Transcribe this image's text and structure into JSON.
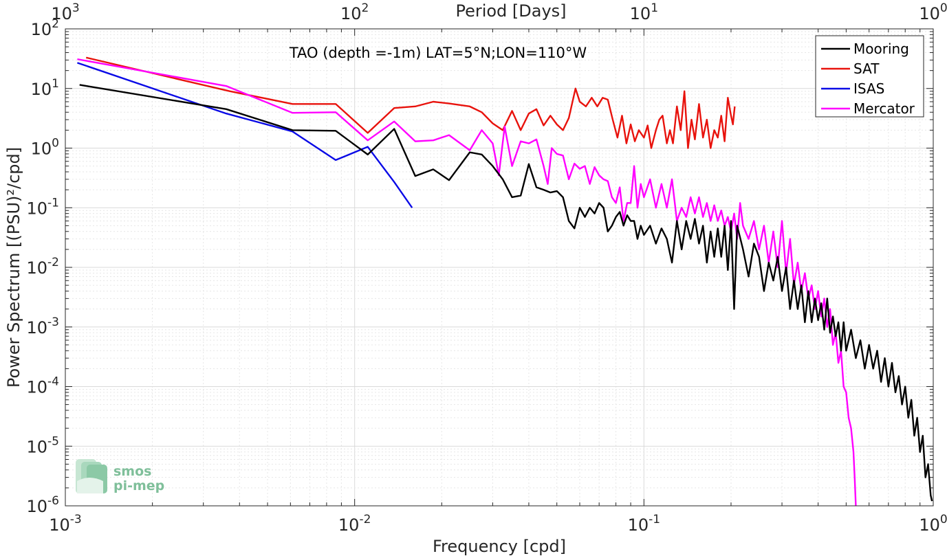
{
  "chart_data": {
    "type": "line",
    "title": "TAO (depth =-1m) LAT=5°N;LON=110°W",
    "xlabel": "Frequency [cpd]",
    "ylabel": "Power Spectrum [(PSU)²/cpd]",
    "top_xlabel": "Period [Days]",
    "xscale": "log",
    "yscale": "log",
    "xlim": [
      0.001,
      1
    ],
    "ylim": [
      1e-06,
      100
    ],
    "grid": true,
    "legend_position": "top-right",
    "x_ticks": [
      {
        "value": 0.001,
        "base": "10",
        "exp": "-3"
      },
      {
        "value": 0.01,
        "base": "10",
        "exp": "-2"
      },
      {
        "value": 0.1,
        "base": "10",
        "exp": "-1"
      },
      {
        "value": 1,
        "base": "10",
        "exp": "0"
      }
    ],
    "top_ticks": [
      {
        "value": 0.001,
        "base": "10",
        "exp": "3"
      },
      {
        "value": 0.01,
        "base": "10",
        "exp": "2"
      },
      {
        "value": 0.1,
        "base": "10",
        "exp": "1"
      },
      {
        "value": 1,
        "base": "10",
        "exp": "0"
      }
    ],
    "y_ticks": [
      {
        "value": 100,
        "base": "10",
        "exp": "2"
      },
      {
        "value": 10,
        "base": "10",
        "exp": "1"
      },
      {
        "value": 1,
        "base": "10",
        "exp": "0"
      },
      {
        "value": 0.1,
        "base": "10",
        "exp": "-1"
      },
      {
        "value": 0.01,
        "base": "10",
        "exp": "-2"
      },
      {
        "value": 0.001,
        "base": "10",
        "exp": "-3"
      },
      {
        "value": 0.0001,
        "base": "10",
        "exp": "-4"
      },
      {
        "value": 1e-05,
        "base": "10",
        "exp": "-5"
      },
      {
        "value": 1e-06,
        "base": "10",
        "exp": "-6"
      }
    ],
    "series": [
      {
        "name": "Mooring",
        "color": "#000000",
        "points": [
          [
            0.00112,
            11.5
          ],
          [
            0.0036,
            4.5
          ],
          [
            0.0061,
            2.0
          ],
          [
            0.0086,
            1.95
          ],
          [
            0.0111,
            0.78
          ],
          [
            0.0137,
            2.1
          ],
          [
            0.0162,
            0.34
          ],
          [
            0.0187,
            0.44
          ],
          [
            0.0212,
            0.29
          ],
          [
            0.025,
            0.85
          ],
          [
            0.0275,
            0.78
          ],
          [
            0.03,
            0.5
          ],
          [
            0.0325,
            0.3
          ],
          [
            0.035,
            0.15
          ],
          [
            0.0375,
            0.16
          ],
          [
            0.04,
            0.54
          ],
          [
            0.0425,
            0.22
          ],
          [
            0.045,
            0.2
          ],
          [
            0.0475,
            0.18
          ],
          [
            0.05,
            0.19
          ],
          [
            0.0525,
            0.15
          ],
          [
            0.055,
            0.06
          ],
          [
            0.0575,
            0.045
          ],
          [
            0.06,
            0.1
          ],
          [
            0.0625,
            0.07
          ],
          [
            0.065,
            0.1
          ],
          [
            0.0675,
            0.08
          ],
          [
            0.07,
            0.12
          ],
          [
            0.0725,
            0.1
          ],
          [
            0.075,
            0.04
          ],
          [
            0.0775,
            0.05
          ],
          [
            0.08,
            0.07
          ],
          [
            0.0825,
            0.085
          ],
          [
            0.085,
            0.05
          ],
          [
            0.0875,
            0.075
          ],
          [
            0.09,
            0.06
          ],
          [
            0.0925,
            0.06
          ],
          [
            0.095,
            0.03
          ],
          [
            0.0975,
            0.05
          ],
          [
            0.1,
            0.035
          ],
          [
            0.105,
            0.05
          ],
          [
            0.11,
            0.025
          ],
          [
            0.115,
            0.045
          ],
          [
            0.12,
            0.03
          ],
          [
            0.125,
            0.012
          ],
          [
            0.13,
            0.06
          ],
          [
            0.135,
            0.02
          ],
          [
            0.14,
            0.06
          ],
          [
            0.145,
            0.03
          ],
          [
            0.15,
            0.065
          ],
          [
            0.155,
            0.025
          ],
          [
            0.16,
            0.05
          ],
          [
            0.165,
            0.012
          ],
          [
            0.17,
            0.04
          ],
          [
            0.175,
            0.015
          ],
          [
            0.18,
            0.045
          ],
          [
            0.185,
            0.015
          ],
          [
            0.19,
            0.05
          ],
          [
            0.195,
            0.009
          ],
          [
            0.2,
            0.06
          ],
          [
            0.205,
            0.002
          ],
          [
            0.21,
            0.05
          ],
          [
            0.22,
            0.02
          ],
          [
            0.23,
            0.007
          ],
          [
            0.24,
            0.025
          ],
          [
            0.25,
            0.015
          ],
          [
            0.26,
            0.004
          ],
          [
            0.27,
            0.012
          ],
          [
            0.28,
            0.006
          ],
          [
            0.29,
            0.015
          ],
          [
            0.3,
            0.004
          ],
          [
            0.31,
            0.01
          ],
          [
            0.32,
            0.002
          ],
          [
            0.33,
            0.006
          ],
          [
            0.34,
            0.002
          ],
          [
            0.35,
            0.005
          ],
          [
            0.36,
            0.0012
          ],
          [
            0.37,
            0.004
          ],
          [
            0.38,
            0.0012
          ],
          [
            0.39,
            0.003
          ],
          [
            0.4,
            0.0013
          ],
          [
            0.41,
            0.0025
          ],
          [
            0.42,
            0.0009
          ],
          [
            0.43,
            0.003
          ],
          [
            0.44,
            0.0008
          ],
          [
            0.45,
            0.0015
          ],
          [
            0.46,
            0.0007
          ],
          [
            0.47,
            0.0012
          ],
          [
            0.48,
            0.0004
          ],
          [
            0.49,
            0.0012
          ],
          [
            0.5,
            0.0004
          ],
          [
            0.52,
            0.0009
          ],
          [
            0.54,
            0.0003
          ],
          [
            0.56,
            0.0006
          ],
          [
            0.58,
            0.0002
          ],
          [
            0.6,
            0.0005
          ],
          [
            0.62,
            0.0002
          ],
          [
            0.64,
            0.0004
          ],
          [
            0.66,
            0.00012
          ],
          [
            0.68,
            0.0003
          ],
          [
            0.7,
            0.0001
          ],
          [
            0.72,
            0.00025
          ],
          [
            0.74,
            8e-05
          ],
          [
            0.76,
            0.00015
          ],
          [
            0.78,
            5e-05
          ],
          [
            0.8,
            0.0001
          ],
          [
            0.82,
            3e-05
          ],
          [
            0.84,
            6e-05
          ],
          [
            0.86,
            1.5e-05
          ],
          [
            0.88,
            3e-05
          ],
          [
            0.9,
            8e-06
          ],
          [
            0.92,
            1.5e-05
          ],
          [
            0.94,
            3e-06
          ],
          [
            0.96,
            5e-06
          ],
          [
            0.98,
            1.5e-06
          ],
          [
            0.99,
            1.2e-06
          ]
        ]
      },
      {
        "name": "SAT",
        "color": "#e8120c",
        "points": [
          [
            0.00118,
            33
          ],
          [
            0.0037,
            9
          ],
          [
            0.0061,
            5.5
          ],
          [
            0.0086,
            5.5
          ],
          [
            0.0111,
            1.8
          ],
          [
            0.0137,
            4.7
          ],
          [
            0.0162,
            5.0
          ],
          [
            0.0187,
            6.0
          ],
          [
            0.0212,
            5.6
          ],
          [
            0.025,
            5.0
          ],
          [
            0.0275,
            4.0
          ],
          [
            0.03,
            2.6
          ],
          [
            0.0325,
            2.0
          ],
          [
            0.035,
            4.2
          ],
          [
            0.0375,
            2.0
          ],
          [
            0.04,
            3.8
          ],
          [
            0.0425,
            4.5
          ],
          [
            0.045,
            2.4
          ],
          [
            0.0475,
            3.5
          ],
          [
            0.05,
            2.5
          ],
          [
            0.0525,
            2.0
          ],
          [
            0.055,
            3.2
          ],
          [
            0.058,
            10
          ],
          [
            0.06,
            6
          ],
          [
            0.063,
            5
          ],
          [
            0.066,
            7
          ],
          [
            0.069,
            5
          ],
          [
            0.072,
            7
          ],
          [
            0.075,
            6.5
          ],
          [
            0.078,
            3.0
          ],
          [
            0.081,
            1.5
          ],
          [
            0.084,
            3.5
          ],
          [
            0.087,
            1.2
          ],
          [
            0.09,
            2.5
          ],
          [
            0.093,
            1.3
          ],
          [
            0.096,
            2.0
          ],
          [
            0.1,
            1.5
          ],
          [
            0.103,
            2.4
          ],
          [
            0.106,
            1.0
          ],
          [
            0.11,
            2.0
          ],
          [
            0.113,
            3.0
          ],
          [
            0.116,
            3.5
          ],
          [
            0.12,
            1.2
          ],
          [
            0.123,
            2.0
          ],
          [
            0.126,
            1.2
          ],
          [
            0.13,
            5.0
          ],
          [
            0.134,
            2.0
          ],
          [
            0.138,
            9.0
          ],
          [
            0.142,
            1.0
          ],
          [
            0.146,
            3.0
          ],
          [
            0.15,
            1.4
          ],
          [
            0.155,
            5.5
          ],
          [
            0.16,
            1.5
          ],
          [
            0.165,
            3.0
          ],
          [
            0.17,
            1.0
          ],
          [
            0.175,
            2.0
          ],
          [
            0.18,
            1.5
          ],
          [
            0.185,
            3.5
          ],
          [
            0.19,
            1.3
          ],
          [
            0.195,
            7.0
          ],
          [
            0.2,
            3.5
          ],
          [
            0.203,
            2.5
          ],
          [
            0.206,
            5.0
          ]
        ]
      },
      {
        "name": "ISAS",
        "color": "#0a0ae6",
        "points": [
          [
            0.0011,
            27
          ],
          [
            0.0036,
            3.8
          ],
          [
            0.0061,
            1.9
          ],
          [
            0.0086,
            0.63
          ],
          [
            0.0111,
            1.05
          ],
          [
            0.0137,
            0.27
          ],
          [
            0.0158,
            0.1
          ]
        ]
      },
      {
        "name": "Mercator",
        "color": "#ff00ff",
        "points": [
          [
            0.0011,
            31
          ],
          [
            0.0036,
            11
          ],
          [
            0.0061,
            3.9
          ],
          [
            0.0086,
            4.0
          ],
          [
            0.0111,
            1.35
          ],
          [
            0.0137,
            2.8
          ],
          [
            0.0162,
            1.3
          ],
          [
            0.0187,
            1.35
          ],
          [
            0.0212,
            1.65
          ],
          [
            0.025,
            0.92
          ],
          [
            0.0275,
            2.0
          ],
          [
            0.03,
            1.2
          ],
          [
            0.0315,
            0.35
          ],
          [
            0.033,
            2.3
          ],
          [
            0.035,
            0.5
          ],
          [
            0.0375,
            1.3
          ],
          [
            0.04,
            1.2
          ],
          [
            0.0425,
            1.4
          ],
          [
            0.045,
            0.5
          ],
          [
            0.0465,
            0.25
          ],
          [
            0.048,
            1.0
          ],
          [
            0.05,
            0.8
          ],
          [
            0.0525,
            0.75
          ],
          [
            0.055,
            0.3
          ],
          [
            0.0575,
            0.55
          ],
          [
            0.06,
            0.45
          ],
          [
            0.0625,
            0.5
          ],
          [
            0.065,
            0.25
          ],
          [
            0.0675,
            0.48
          ],
          [
            0.07,
            0.35
          ],
          [
            0.0725,
            0.3
          ],
          [
            0.075,
            0.28
          ],
          [
            0.0775,
            0.15
          ],
          [
            0.08,
            0.12
          ],
          [
            0.0825,
            0.22
          ],
          [
            0.085,
            0.06
          ],
          [
            0.0875,
            0.12
          ],
          [
            0.09,
            0.12
          ],
          [
            0.0925,
            0.5
          ],
          [
            0.095,
            0.1
          ],
          [
            0.0975,
            0.25
          ],
          [
            0.1,
            0.15
          ],
          [
            0.105,
            0.3
          ],
          [
            0.11,
            0.1
          ],
          [
            0.115,
            0.25
          ],
          [
            0.12,
            0.1
          ],
          [
            0.125,
            0.3
          ],
          [
            0.13,
            0.06
          ],
          [
            0.135,
            0.1
          ],
          [
            0.14,
            0.07
          ],
          [
            0.145,
            0.15
          ],
          [
            0.15,
            0.08
          ],
          [
            0.155,
            0.15
          ],
          [
            0.16,
            0.07
          ],
          [
            0.165,
            0.12
          ],
          [
            0.17,
            0.06
          ],
          [
            0.175,
            0.11
          ],
          [
            0.18,
            0.06
          ],
          [
            0.185,
            0.09
          ],
          [
            0.19,
            0.05
          ],
          [
            0.195,
            0.07
          ],
          [
            0.2,
            0.04
          ],
          [
            0.205,
            0.08
          ],
          [
            0.21,
            0.03
          ],
          [
            0.215,
            0.12
          ],
          [
            0.22,
            0.05
          ],
          [
            0.23,
            0.03
          ],
          [
            0.24,
            0.06
          ],
          [
            0.25,
            0.02
          ],
          [
            0.26,
            0.05
          ],
          [
            0.27,
            0.012
          ],
          [
            0.28,
            0.04
          ],
          [
            0.29,
            0.01
          ],
          [
            0.3,
            0.06
          ],
          [
            0.31,
            0.008
          ],
          [
            0.32,
            0.03
          ],
          [
            0.33,
            0.005
          ],
          [
            0.34,
            0.012
          ],
          [
            0.35,
            0.004
          ],
          [
            0.36,
            0.008
          ],
          [
            0.37,
            0.003
          ],
          [
            0.38,
            0.005
          ],
          [
            0.39,
            0.002
          ],
          [
            0.4,
            0.004
          ],
          [
            0.41,
            0.0015
          ],
          [
            0.42,
            0.003
          ],
          [
            0.43,
            0.001
          ],
          [
            0.44,
            0.002
          ],
          [
            0.45,
            0.0005
          ],
          [
            0.46,
            0.0008
          ],
          [
            0.47,
            0.00025
          ],
          [
            0.48,
            0.0004
          ],
          [
            0.49,
            0.0001
          ],
          [
            0.5,
            8e-05
          ],
          [
            0.51,
            3e-05
          ],
          [
            0.52,
            2e-05
          ],
          [
            0.53,
            8e-06
          ],
          [
            0.535,
            3e-06
          ],
          [
            0.54,
            1e-06
          ]
        ]
      }
    ]
  }
}
